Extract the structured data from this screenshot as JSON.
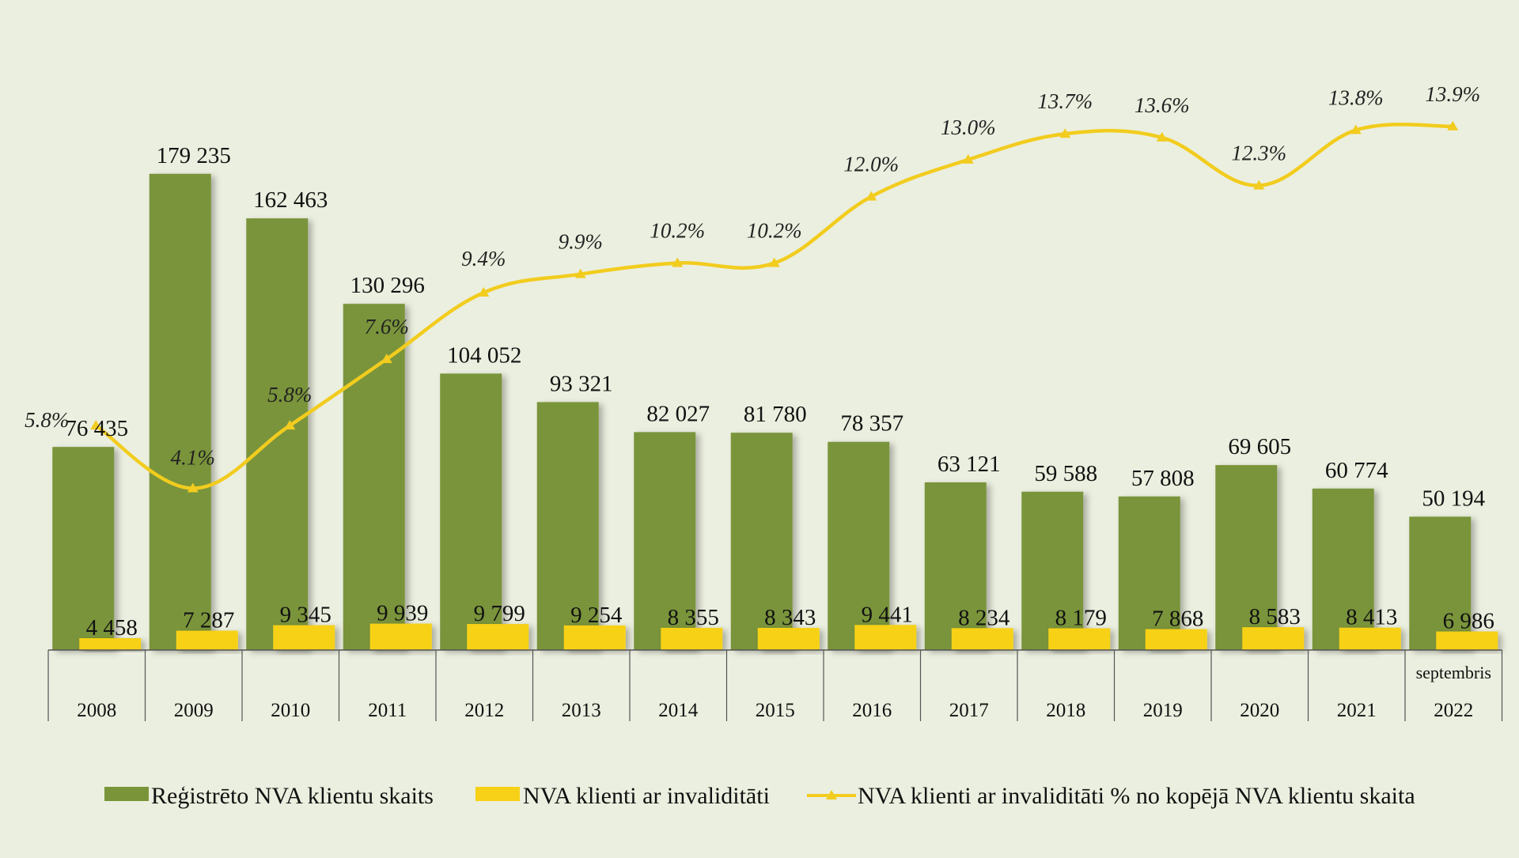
{
  "colors": {
    "background": "#ebefdf",
    "registered_bar": "#7a943a",
    "disabled_bar": "#f7d117",
    "percent_line": "#f2cc1e",
    "axis": "#555555"
  },
  "chart_data": {
    "type": "bar",
    "categories": [
      "2008",
      "2009",
      "2010",
      "2011",
      "2012",
      "2013",
      "2014",
      "2015",
      "2016",
      "2017",
      "2018",
      "2019",
      "2020",
      "2021",
      "2022"
    ],
    "category_sublabels": [
      "",
      "",
      "",
      "",
      "",
      "",
      "",
      "",
      "",
      "",
      "",
      "",
      "",
      "",
      "septembris"
    ],
    "series": [
      {
        "name": "Reģistrēto NVA klientu skaits",
        "type": "bar",
        "values": [
          76435,
          179235,
          162463,
          130296,
          104052,
          93321,
          82027,
          81780,
          78357,
          63121,
          59588,
          57808,
          69605,
          60774,
          50194
        ],
        "labels": [
          "76 435",
          "179 235",
          "162 463",
          "130 296",
          "104 052",
          "93 321",
          "82 027",
          "81 780",
          "78 357",
          "63 121",
          "59 588",
          "57 808",
          "69 605",
          "60 774",
          "50 194"
        ]
      },
      {
        "name": "NVA klienti ar invaliditāti",
        "type": "bar",
        "values": [
          4458,
          7287,
          9345,
          9939,
          9799,
          9254,
          8355,
          8343,
          9441,
          8234,
          8179,
          7868,
          8583,
          8413,
          6986
        ],
        "labels": [
          "4 458",
          "7 287",
          "9 345",
          "9 939",
          "9 799",
          "9 254",
          "8 355",
          "8 343",
          "9 441",
          "8 234",
          "8 179",
          "7 868",
          "8 583",
          "8 413",
          "6 986"
        ]
      },
      {
        "name": "NVA klienti ar invaliditāti % no kopējā NVA klientu skaita",
        "type": "line",
        "values": [
          5.8,
          4.1,
          5.8,
          7.6,
          9.4,
          9.9,
          10.2,
          10.2,
          12.0,
          13.0,
          13.7,
          13.6,
          12.3,
          13.8,
          13.9
        ],
        "labels": [
          "5.8%",
          "4.1%",
          "5.8%",
          "7.6%",
          "9.4%",
          "9.9%",
          "10.2%",
          "10.2%",
          "12.0%",
          "13.0%",
          "13.7%",
          "13.6%",
          "12.3%",
          "13.8%",
          "13.9%"
        ]
      }
    ],
    "ylim": [
      0,
      200000
    ],
    "y2lim": [
      0,
      16
    ],
    "grid": false,
    "legend_position": "bottom"
  }
}
